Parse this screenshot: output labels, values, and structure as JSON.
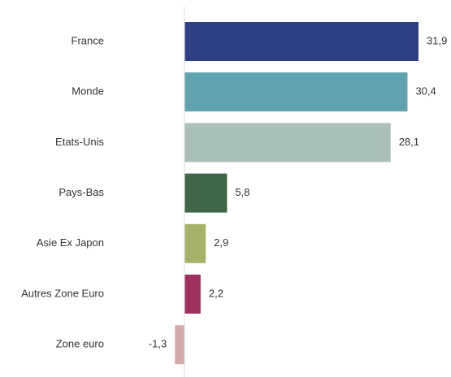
{
  "chart_data": {
    "type": "hbar",
    "categories": [
      "France",
      "Monde",
      "Etats-Unis",
      "Pays-Bas",
      "Asie Ex Japon",
      "Autres Zone Euro",
      "Zone euro"
    ],
    "values": [
      31.9,
      30.4,
      28.1,
      5.8,
      2.9,
      2.2,
      -1.3
    ],
    "value_labels": [
      "31,9",
      "30,4",
      "28,1",
      "5,8",
      "2,9",
      "2,2",
      "-1,3"
    ],
    "colors": [
      "#2e3f86",
      "#5fa3ae",
      "#a9bfb8",
      "#3e6647",
      "#a5b268",
      "#a0305f",
      "#d4a9aa"
    ]
  }
}
